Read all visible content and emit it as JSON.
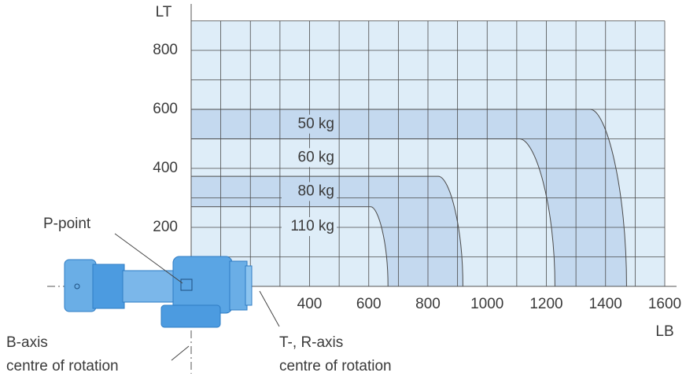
{
  "chart_data": {
    "type": "load-diagram",
    "xlabel": "LB",
    "ylabel": "LT",
    "xlim": [
      0,
      1600
    ],
    "ylim": [
      0,
      900
    ],
    "xticks": [
      400,
      600,
      800,
      1000,
      1200,
      1400,
      1600
    ],
    "yticks": [
      200,
      400,
      600,
      800
    ],
    "xgrid": [
      0,
      100,
      200,
      300,
      400,
      500,
      600,
      700,
      800,
      900,
      1000,
      1100,
      1200,
      1300,
      1400,
      1500,
      1600
    ],
    "ygrid": [
      0,
      100,
      200,
      300,
      400,
      500,
      600,
      700,
      800,
      900
    ],
    "background": "#deedf8",
    "series": [
      {
        "name": "50 kg",
        "color": "#c4d9ef",
        "x": [
          0,
          1348,
          1471
        ],
        "values": [
          600,
          600,
          0
        ]
      },
      {
        "name": "60 kg",
        "color": "#deedf8",
        "x": [
          0,
          1109,
          1229
        ],
        "values": [
          500,
          500,
          0
        ]
      },
      {
        "name": "80 kg",
        "color": "#c4d9ef",
        "x": [
          0,
          835,
          918
        ],
        "values": [
          373,
          373,
          0
        ]
      },
      {
        "name": "110 kg",
        "color": "#deedf8",
        "x": [
          0,
          606,
          665
        ],
        "values": [
          270,
          270,
          0
        ]
      }
    ],
    "annotations": {
      "p_point": "P-point",
      "b_axis": [
        "B-axis",
        "centre of rotation"
      ],
      "tr_axis": [
        "T-, R-axis",
        "centre of rotation"
      ]
    }
  }
}
